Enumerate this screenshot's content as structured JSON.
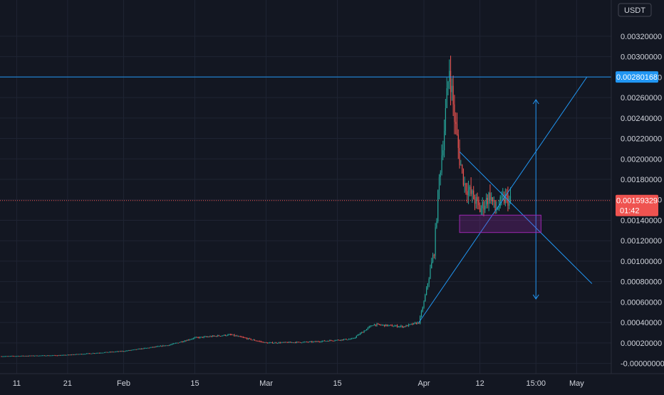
{
  "theme": {
    "background": "#131722",
    "grid": "#1f2433",
    "text": "#d1d4dc",
    "up": "#26a69a",
    "down": "#ef5350",
    "drawing": "#2196f3",
    "box": "#9c27b0"
  },
  "currency_label": "USDT",
  "chart_data": {
    "type": "candlestick",
    "instrument_quote": "USDT",
    "x_ticks": [
      "11",
      "21",
      "Feb",
      "15",
      "Mar",
      "15",
      "Apr",
      "12",
      "15:00",
      "May"
    ],
    "y_ticks": [
      "0.00320000",
      "0.00300000",
      "0.00280000",
      "0.00260000",
      "0.00240000",
      "0.00220000",
      "0.00200000",
      "0.00180000",
      "0.00160000",
      "0.00140000",
      "0.00120000",
      "0.00100000",
      "0.00080000",
      "0.00060000",
      "0.00040000",
      "0.00020000",
      "-0.00000000"
    ],
    "y_range": [
      -1e-05,
      0.00345
    ],
    "horizontal_line": {
      "value": 0.00280168,
      "label": "0.00280168",
      "color": "#2196f3"
    },
    "last_price": {
      "value": 0.00159329,
      "label": "0.00159329",
      "countdown": "01:42",
      "color": "#ef5350"
    },
    "price_path": [
      [
        "2021-01-08",
        7e-05
      ],
      [
        "2021-01-20",
        8e-05
      ],
      [
        "2021-02-01",
        0.00012
      ],
      [
        "2021-02-10",
        0.00018
      ],
      [
        "2021-02-15",
        0.00025
      ],
      [
        "2021-02-22",
        0.00028
      ],
      [
        "2021-03-01",
        0.0002
      ],
      [
        "2021-03-10",
        0.00021
      ],
      [
        "2021-03-18",
        0.00024
      ],
      [
        "2021-03-22",
        0.00038
      ],
      [
        "2021-03-28",
        0.00036
      ],
      [
        "2021-03-31",
        0.0004
      ],
      [
        "2021-04-01",
        0.0006
      ],
      [
        "2021-04-03",
        0.0011
      ],
      [
        "2021-04-04",
        0.0018
      ],
      [
        "2021-04-05",
        0.0023
      ],
      [
        "2021-04-06",
        0.0029
      ],
      [
        "2021-04-07",
        0.0024
      ],
      [
        "2021-04-08",
        0.002
      ],
      [
        "2021-04-09",
        0.00175
      ],
      [
        "2021-04-11",
        0.0016
      ],
      [
        "2021-04-12",
        0.0015
      ],
      [
        "2021-04-14",
        0.00165
      ],
      [
        "2021-04-15",
        0.0015
      ],
      [
        "2021-04-17",
        0.00162
      ],
      [
        "2021-04-18",
        0.00159
      ]
    ],
    "drawings": [
      {
        "type": "trendline",
        "from": [
          "2021-03-31",
          0.0004
        ],
        "to": [
          "2021-05-03",
          0.0028
        ]
      },
      {
        "type": "trendline",
        "from": [
          "2021-04-08",
          0.00207
        ],
        "to": [
          "2021-05-04",
          0.00078
        ]
      },
      {
        "type": "arrow",
        "x": "2021-04-23",
        "from": 0.00258,
        "to": 0.00063
      },
      {
        "type": "rectangle",
        "from": [
          "2021-04-08",
          0.00145
        ],
        "to": [
          "2021-04-24",
          0.00128
        ]
      }
    ]
  }
}
